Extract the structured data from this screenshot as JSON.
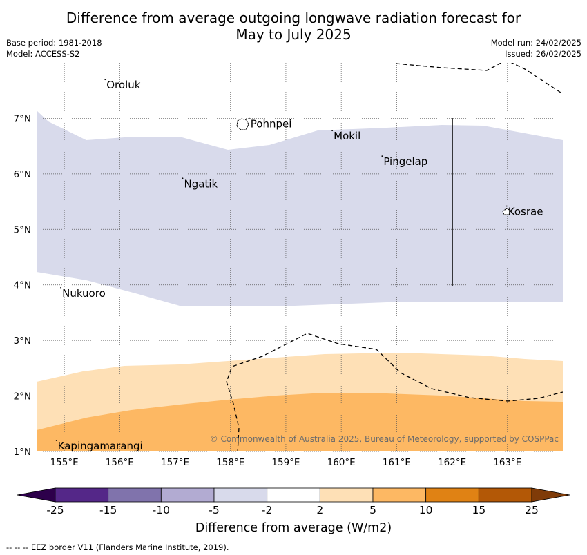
{
  "title_line1": "Difference from average outgoing longwave radiation forecast for",
  "title_line2": "May to July 2025",
  "base_period": "Base period: 1981-2018",
  "model": "Model: ACCESS-S2",
  "model_run": "Model run: 24/02/2025",
  "issued": "Issued: 26/02/2025",
  "copyright": "© Commonwealth of Australia 2025, Bureau of Meteorology, supported by COSPPac",
  "colorbar_title": "Difference from average (W/m2)",
  "footnote": "-- -- -- EEZ border V11 (Flanders Marine Institute, 2019).",
  "map": {
    "lon_range": [
      154.5,
      164.0
    ],
    "lat_range": [
      1.0,
      8.0
    ],
    "lon_ticks": [
      {
        "value": 155,
        "label": "155°E"
      },
      {
        "value": 156,
        "label": "156°E"
      },
      {
        "value": 157,
        "label": "157°E"
      },
      {
        "value": 158,
        "label": "158°E"
      },
      {
        "value": 159,
        "label": "159°E"
      },
      {
        "value": 160,
        "label": "160°E"
      },
      {
        "value": 161,
        "label": "161°E"
      },
      {
        "value": 162,
        "label": "162°E"
      },
      {
        "value": 163,
        "label": "163°E"
      }
    ],
    "lat_ticks": [
      {
        "value": 7,
        "label": "7°N"
      },
      {
        "value": 6,
        "label": "6°N"
      },
      {
        "value": 5,
        "label": "5°N"
      },
      {
        "value": 4,
        "label": "4°N"
      },
      {
        "value": 3,
        "label": "3°N"
      },
      {
        "value": 2,
        "label": "2°N"
      },
      {
        "value": 1,
        "label": "1°N"
      }
    ],
    "places": [
      {
        "name": "Oroluk",
        "lon": 155.75,
        "lat": 7.6
      },
      {
        "name": "Pohnpei",
        "lon": 158.35,
        "lat": 6.9
      },
      {
        "name": "Mokil",
        "lon": 159.85,
        "lat": 6.68
      },
      {
        "name": "Pingelap",
        "lon": 160.75,
        "lat": 6.22
      },
      {
        "name": "Ngatik",
        "lon": 157.15,
        "lat": 5.82
      },
      {
        "name": "Kosrae",
        "lon": 163.0,
        "lat": 5.32
      },
      {
        "name": "Nukuoro",
        "lon": 154.95,
        "lat": 3.85
      },
      {
        "name": "Kapingamarangi",
        "lon": 154.87,
        "lat": 1.1
      }
    ]
  },
  "colorbar": {
    "labels": [
      "-25",
      "-15",
      "-10",
      "-5",
      "-2",
      "2",
      "5",
      "10",
      "15",
      "25"
    ],
    "colors": [
      "#2d004b",
      "#542788",
      "#8073ac",
      "#b2abd2",
      "#d8daeb",
      "#ffffff",
      "#fee0b6",
      "#fdb863",
      "#e08214",
      "#b35806",
      "#7f3b08"
    ]
  }
}
